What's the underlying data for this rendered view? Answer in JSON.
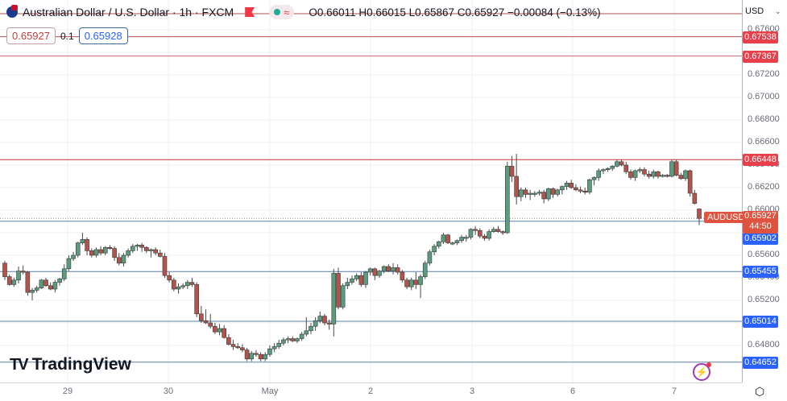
{
  "header": {
    "title": "Australian Dollar / U.S. Dollar · 1h · FXCM",
    "ohlc": "O0.66011 H0.66015 L0.65867 C0.65927 −0.00084 (−0.13%)",
    "open": "0.66011",
    "high": "0.66015",
    "low": "0.65867",
    "close": "0.65927",
    "change": "−0.00084",
    "change_pct": "(−0.13%)",
    "approx_icon": "≈"
  },
  "trade": {
    "sell_price": "0.65927",
    "spread": "0.1",
    "buy_price": "0.65928"
  },
  "price_axis": {
    "currency": "USD",
    "ticks": [
      "0.67600",
      "0.67200",
      "0.67000",
      "0.66800",
      "0.66600",
      "0.66400",
      "0.66200",
      "0.66000",
      "0.65600",
      "0.65400",
      "0.65200",
      "0.64800"
    ],
    "current": {
      "symbol": "AUDUSD",
      "price": "0.65927",
      "countdown": "44:50"
    },
    "lines": [
      {
        "price": "0.67538",
        "color": "#e8404b"
      },
      {
        "price": "0.67367",
        "color": "#e8404b"
      },
      {
        "price": "0.66448",
        "color": "#e8404b"
      },
      {
        "price": "0.65902",
        "color": "#2962ff"
      },
      {
        "price": "0.65455",
        "color": "#2962ff"
      },
      {
        "price": "0.65014",
        "color": "#2962ff"
      },
      {
        "price": "0.64652",
        "color": "#2962ff"
      }
    ]
  },
  "time_axis": {
    "labels": [
      "29",
      "30",
      "May",
      "2",
      "3",
      "6",
      "7"
    ]
  },
  "branding": {
    "logo_text": "TradingView",
    "logo_mark": "17"
  },
  "colors": {
    "up": "#5b9c7f",
    "down": "#b2544b",
    "resistance": "#c0392b",
    "support": "#5a7fa8"
  },
  "chart_data": {
    "type": "candlestick",
    "title": "Australian Dollar / U.S. Dollar · 1h · FXCM",
    "xlabel": "",
    "ylabel": "USD",
    "ylim": [
      0.645,
      0.677
    ],
    "x_ticks": [
      "29",
      "30",
      "May",
      "2",
      "3",
      "6",
      "7"
    ],
    "horizontal_lines": [
      0.67538,
      0.67367,
      0.66448,
      0.65455,
      0.65014,
      0.64652
    ],
    "last": {
      "open": 0.66011,
      "high": 0.66015,
      "low": 0.65867,
      "close": 0.65927
    },
    "candles": [
      [
        0.6553,
        0.6555,
        0.6538,
        0.6541
      ],
      [
        0.6541,
        0.6543,
        0.6533,
        0.6534
      ],
      [
        0.6534,
        0.654,
        0.6532,
        0.6538
      ],
      [
        0.6538,
        0.655,
        0.6535,
        0.6546
      ],
      [
        0.6546,
        0.6551,
        0.6543,
        0.6545
      ],
      [
        0.6545,
        0.6546,
        0.6524,
        0.6527
      ],
      [
        0.6527,
        0.6531,
        0.652,
        0.6529
      ],
      [
        0.6529,
        0.6533,
        0.6527,
        0.6531
      ],
      [
        0.6531,
        0.6539,
        0.653,
        0.6538
      ],
      [
        0.6538,
        0.654,
        0.6532,
        0.6533
      ],
      [
        0.6533,
        0.6536,
        0.6529,
        0.653
      ],
      [
        0.653,
        0.6538,
        0.6527,
        0.6536
      ],
      [
        0.6536,
        0.654,
        0.6533,
        0.6539
      ],
      [
        0.6539,
        0.6552,
        0.6537,
        0.6548
      ],
      [
        0.6548,
        0.656,
        0.6546,
        0.6557
      ],
      [
        0.6557,
        0.6563,
        0.6555,
        0.656
      ],
      [
        0.656,
        0.6572,
        0.6558,
        0.6571
      ],
      [
        0.6571,
        0.658,
        0.6569,
        0.6574
      ],
      [
        0.6574,
        0.6576,
        0.656,
        0.6564
      ],
      [
        0.6564,
        0.6566,
        0.6558,
        0.656
      ],
      [
        0.656,
        0.6567,
        0.6558,
        0.6565
      ],
      [
        0.6565,
        0.6568,
        0.656,
        0.6562
      ],
      [
        0.6562,
        0.6568,
        0.656,
        0.6567
      ],
      [
        0.6567,
        0.6569,
        0.6565,
        0.6566
      ],
      [
        0.6566,
        0.6568,
        0.6555,
        0.6558
      ],
      [
        0.6558,
        0.6562,
        0.6551,
        0.6553
      ],
      [
        0.6553,
        0.6562,
        0.655,
        0.656
      ],
      [
        0.656,
        0.6566,
        0.6558,
        0.6564
      ],
      [
        0.6564,
        0.657,
        0.6562,
        0.6568
      ],
      [
        0.6568,
        0.657,
        0.6564,
        0.6569
      ],
      [
        0.6569,
        0.6571,
        0.6563,
        0.6567
      ],
      [
        0.6567,
        0.6568,
        0.6562,
        0.6564
      ],
      [
        0.6564,
        0.6566,
        0.6558,
        0.6565
      ],
      [
        0.6565,
        0.6567,
        0.656,
        0.6562
      ],
      [
        0.6562,
        0.6565,
        0.6558,
        0.6559
      ],
      [
        0.6559,
        0.6562,
        0.654,
        0.6542
      ],
      [
        0.6542,
        0.6545,
        0.6536,
        0.6538
      ],
      [
        0.6538,
        0.654,
        0.6528,
        0.653
      ],
      [
        0.653,
        0.6535,
        0.6526,
        0.6532
      ],
      [
        0.6532,
        0.6535,
        0.653,
        0.6533
      ],
      [
        0.6533,
        0.6538,
        0.653,
        0.6536
      ],
      [
        0.6536,
        0.654,
        0.6532,
        0.6534
      ],
      [
        0.6534,
        0.6536,
        0.6505,
        0.6508
      ],
      [
        0.6508,
        0.6515,
        0.65,
        0.6502
      ],
      [
        0.6502,
        0.6512,
        0.6499,
        0.65
      ],
      [
        0.65,
        0.6508,
        0.6495,
        0.6497
      ],
      [
        0.6497,
        0.65,
        0.649,
        0.6492
      ],
      [
        0.6492,
        0.6499,
        0.6489,
        0.6495
      ],
      [
        0.6495,
        0.6498,
        0.6486,
        0.6487
      ],
      [
        0.6487,
        0.649,
        0.648,
        0.6481
      ],
      [
        0.6481,
        0.6485,
        0.6476,
        0.6479
      ],
      [
        0.6479,
        0.6482,
        0.6477,
        0.6478
      ],
      [
        0.6478,
        0.6481,
        0.6474,
        0.6476
      ],
      [
        0.6476,
        0.6478,
        0.6466,
        0.6468
      ],
      [
        0.6468,
        0.6475,
        0.6466,
        0.6473
      ],
      [
        0.6473,
        0.6476,
        0.647,
        0.6472
      ],
      [
        0.6472,
        0.6474,
        0.6466,
        0.6468
      ],
      [
        0.6468,
        0.6474,
        0.6466,
        0.6472
      ],
      [
        0.6472,
        0.648,
        0.647,
        0.6477
      ],
      [
        0.6477,
        0.6482,
        0.6474,
        0.6479
      ],
      [
        0.6479,
        0.6485,
        0.6477,
        0.6482
      ],
      [
        0.6482,
        0.6487,
        0.648,
        0.6485
      ],
      [
        0.6485,
        0.6488,
        0.6482,
        0.6486
      ],
      [
        0.6486,
        0.6488,
        0.6483,
        0.6484
      ],
      [
        0.6484,
        0.6487,
        0.6482,
        0.6486
      ],
      [
        0.6486,
        0.6492,
        0.6484,
        0.649
      ],
      [
        0.649,
        0.6505,
        0.6488,
        0.6493
      ],
      [
        0.6493,
        0.65,
        0.649,
        0.6497
      ],
      [
        0.6497,
        0.6505,
        0.6493,
        0.6502
      ],
      [
        0.6502,
        0.651,
        0.65,
        0.6506
      ],
      [
        0.6506,
        0.6508,
        0.6498,
        0.65
      ],
      [
        0.65,
        0.6503,
        0.6494,
        0.6499
      ],
      [
        0.6499,
        0.6548,
        0.6488,
        0.6544
      ],
      [
        0.6544,
        0.6549,
        0.6512,
        0.6514
      ],
      [
        0.6514,
        0.6535,
        0.6512,
        0.6533
      ],
      [
        0.6533,
        0.654,
        0.653,
        0.6536
      ],
      [
        0.6536,
        0.6542,
        0.6534,
        0.6539
      ],
      [
        0.6539,
        0.6544,
        0.6537,
        0.6542
      ],
      [
        0.6542,
        0.6545,
        0.6532,
        0.6534
      ],
      [
        0.6534,
        0.6546,
        0.6531,
        0.6545
      ],
      [
        0.6545,
        0.6549,
        0.6542,
        0.6548
      ],
      [
        0.6548,
        0.6549,
        0.6538,
        0.6542
      ],
      [
        0.6542,
        0.6547,
        0.654,
        0.6546
      ],
      [
        0.6546,
        0.6551,
        0.6544,
        0.655
      ],
      [
        0.655,
        0.6552,
        0.6545,
        0.6546
      ],
      [
        0.6546,
        0.6553,
        0.6543,
        0.6549
      ],
      [
        0.6549,
        0.6552,
        0.6543,
        0.6545
      ],
      [
        0.6545,
        0.6547,
        0.6536,
        0.6538
      ],
      [
        0.6538,
        0.654,
        0.653,
        0.6532
      ],
      [
        0.6532,
        0.654,
        0.6529,
        0.6538
      ],
      [
        0.6538,
        0.6545,
        0.653,
        0.6534
      ],
      [
        0.6534,
        0.6543,
        0.6522,
        0.6541
      ],
      [
        0.6541,
        0.6555,
        0.6539,
        0.6553
      ],
      [
        0.6553,
        0.6565,
        0.6551,
        0.6563
      ],
      [
        0.6563,
        0.657,
        0.656,
        0.6568
      ],
      [
        0.6568,
        0.6573,
        0.6566,
        0.6572
      ],
      [
        0.6572,
        0.658,
        0.657,
        0.6578
      ],
      [
        0.6578,
        0.6579,
        0.657,
        0.6571
      ],
      [
        0.6571,
        0.6572,
        0.6569,
        0.6571
      ],
      [
        0.6571,
        0.6574,
        0.6569,
        0.6573
      ],
      [
        0.6573,
        0.6578,
        0.6571,
        0.6576
      ],
      [
        0.6576,
        0.6578,
        0.6572,
        0.6576
      ],
      [
        0.6576,
        0.6584,
        0.6574,
        0.6583
      ],
      [
        0.6583,
        0.6586,
        0.6578,
        0.6582
      ],
      [
        0.6582,
        0.6584,
        0.6575,
        0.6577
      ],
      [
        0.6577,
        0.6579,
        0.6573,
        0.6575
      ],
      [
        0.6575,
        0.6583,
        0.6573,
        0.6581
      ],
      [
        0.6581,
        0.6585,
        0.658,
        0.6583
      ],
      [
        0.6583,
        0.6586,
        0.658,
        0.6581
      ],
      [
        0.6581,
        0.6582,
        0.6578,
        0.658
      ],
      [
        0.658,
        0.6643,
        0.6579,
        0.6639
      ],
      [
        0.6639,
        0.6648,
        0.6625,
        0.663
      ],
      [
        0.663,
        0.665,
        0.6605,
        0.6612
      ],
      [
        0.6612,
        0.662,
        0.6608,
        0.6618
      ],
      [
        0.6618,
        0.662,
        0.6611,
        0.6614
      ],
      [
        0.6614,
        0.6618,
        0.6609,
        0.6615
      ],
      [
        0.6615,
        0.6617,
        0.6612,
        0.6615
      ],
      [
        0.6615,
        0.6618,
        0.6613,
        0.6616
      ],
      [
        0.6616,
        0.6618,
        0.6606,
        0.661
      ],
      [
        0.661,
        0.662,
        0.6608,
        0.6619
      ],
      [
        0.6619,
        0.662,
        0.6611,
        0.6614
      ],
      [
        0.6614,
        0.6619,
        0.6612,
        0.6618
      ],
      [
        0.6618,
        0.6622,
        0.6614,
        0.6621
      ],
      [
        0.6621,
        0.6626,
        0.6618,
        0.6624
      ],
      [
        0.6624,
        0.6627,
        0.6619,
        0.662
      ],
      [
        0.662,
        0.6623,
        0.6617,
        0.6618
      ],
      [
        0.6618,
        0.6621,
        0.6615,
        0.6617
      ],
      [
        0.6617,
        0.662,
        0.6614,
        0.6616
      ],
      [
        0.6616,
        0.6628,
        0.6614,
        0.6627
      ],
      [
        0.6627,
        0.663,
        0.6622,
        0.6629
      ],
      [
        0.6629,
        0.6637,
        0.6626,
        0.6635
      ],
      [
        0.6635,
        0.6637,
        0.6632,
        0.6636
      ],
      [
        0.6636,
        0.6638,
        0.6634,
        0.6637
      ],
      [
        0.6637,
        0.664,
        0.6635,
        0.6639
      ],
      [
        0.6639,
        0.6645,
        0.6638,
        0.6643
      ],
      [
        0.6643,
        0.6645,
        0.6639,
        0.664
      ],
      [
        0.664,
        0.6643,
        0.6632,
        0.6634
      ],
      [
        0.6634,
        0.6636,
        0.6627,
        0.6629
      ],
      [
        0.6629,
        0.6636,
        0.6626,
        0.6635
      ],
      [
        0.6635,
        0.6638,
        0.6633,
        0.6636
      ],
      [
        0.6636,
        0.6638,
        0.663,
        0.6632
      ],
      [
        0.6632,
        0.6635,
        0.6628,
        0.663
      ],
      [
        0.663,
        0.6636,
        0.6628,
        0.6634
      ],
      [
        0.6634,
        0.6635,
        0.6628,
        0.663
      ],
      [
        0.663,
        0.6632,
        0.6629,
        0.6631
      ],
      [
        0.6631,
        0.6632,
        0.6629,
        0.663
      ],
      [
        0.663,
        0.6645,
        0.6629,
        0.6643
      ],
      [
        0.6643,
        0.6645,
        0.663,
        0.6631
      ],
      [
        0.6631,
        0.6633,
        0.6627,
        0.6628
      ],
      [
        0.6628,
        0.6636,
        0.6626,
        0.6635
      ],
      [
        0.6635,
        0.6636,
        0.6612,
        0.6615
      ],
      [
        0.6615,
        0.6618,
        0.6605,
        0.6606
      ],
      [
        0.66011,
        0.66015,
        0.65867,
        0.65927
      ]
    ]
  }
}
